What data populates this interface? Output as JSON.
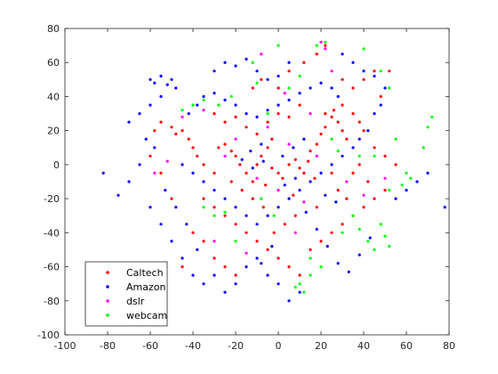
{
  "chart_data": {
    "type": "scatter",
    "title": "",
    "xlabel": "",
    "ylabel": "",
    "xlim": [
      -100,
      80
    ],
    "ylim": [
      -100,
      80
    ],
    "xticks": [
      -100,
      -80,
      -60,
      -40,
      -20,
      0,
      20,
      40,
      60,
      80
    ],
    "yticks": [
      -100,
      -80,
      -60,
      -40,
      -20,
      0,
      20,
      40,
      60,
      80
    ],
    "grid": false,
    "legend_position": "bottom-left",
    "series": [
      {
        "name": "Caltech",
        "color": "#ff0000",
        "points": [
          [
            -55,
            25
          ],
          [
            -50,
            22
          ],
          [
            -48,
            18
          ],
          [
            -45,
            20
          ],
          [
            -42,
            15
          ],
          [
            -40,
            10
          ],
          [
            -38,
            5
          ],
          [
            -35,
            0
          ],
          [
            -30,
            -5
          ],
          [
            -28,
            10
          ],
          [
            -25,
            12
          ],
          [
            -22,
            8
          ],
          [
            -20,
            5
          ],
          [
            -18,
            0
          ],
          [
            -15,
            -5
          ],
          [
            -12,
            -10
          ],
          [
            -10,
            0
          ],
          [
            -8,
            5
          ],
          [
            -5,
            10
          ],
          [
            -3,
            -2
          ],
          [
            0,
            -5
          ],
          [
            2,
            -8
          ],
          [
            5,
            0
          ],
          [
            8,
            3
          ],
          [
            10,
            -2
          ],
          [
            12,
            -5
          ],
          [
            15,
            8
          ],
          [
            18,
            12
          ],
          [
            20,
            18
          ],
          [
            22,
            22
          ],
          [
            25,
            28
          ],
          [
            28,
            25
          ],
          [
            30,
            20
          ],
          [
            32,
            15
          ],
          [
            35,
            30
          ],
          [
            38,
            25
          ],
          [
            40,
            20
          ],
          [
            22,
            30
          ],
          [
            26,
            32
          ],
          [
            30,
            35
          ],
          [
            -30,
            30
          ],
          [
            -28,
            35
          ],
          [
            -25,
            25
          ],
          [
            -20,
            28
          ],
          [
            -15,
            22
          ],
          [
            -10,
            18
          ],
          [
            -5,
            25
          ],
          [
            0,
            30
          ],
          [
            5,
            28
          ],
          [
            10,
            35
          ],
          [
            -35,
            -20
          ],
          [
            -30,
            -25
          ],
          [
            -25,
            -30
          ],
          [
            -20,
            -35
          ],
          [
            -15,
            -40
          ],
          [
            -10,
            -45
          ],
          [
            -5,
            -50
          ],
          [
            0,
            -55
          ],
          [
            5,
            -60
          ],
          [
            10,
            -65
          ],
          [
            15,
            -50
          ],
          [
            20,
            -45
          ],
          [
            25,
            -40
          ],
          [
            30,
            -35
          ],
          [
            35,
            -30
          ],
          [
            40,
            -25
          ],
          [
            45,
            -20
          ],
          [
            50,
            -15
          ],
          [
            -40,
            -40
          ],
          [
            -35,
            -45
          ],
          [
            -30,
            -55
          ],
          [
            -25,
            -60
          ],
          [
            -20,
            -65
          ],
          [
            45,
            10
          ],
          [
            50,
            5
          ],
          [
            55,
            0
          ],
          [
            48,
            40
          ],
          [
            52,
            55
          ],
          [
            45,
            55
          ],
          [
            40,
            50
          ],
          [
            -45,
            -60
          ],
          [
            -50,
            -20
          ],
          [
            -55,
            -5
          ],
          [
            -60,
            5
          ],
          [
            -58,
            20
          ],
          [
            -12,
            45
          ],
          [
            -8,
            50
          ],
          [
            0,
            45
          ],
          [
            5,
            55
          ],
          [
            12,
            60
          ],
          [
            18,
            65
          ],
          [
            22,
            70
          ],
          [
            30,
            50
          ],
          [
            35,
            45
          ],
          [
            28,
            -15
          ],
          [
            32,
            -20
          ],
          [
            18,
            -25
          ],
          [
            8,
            -30
          ],
          [
            3,
            -35
          ],
          [
            -2,
            -40
          ],
          [
            -7,
            -25
          ],
          [
            -12,
            -20
          ],
          [
            -17,
            -15
          ],
          [
            -22,
            -10
          ],
          [
            14,
            2
          ],
          [
            17,
            -8
          ],
          [
            -3,
            15
          ],
          [
            -6,
            -12
          ],
          [
            7,
            -18
          ],
          [
            25,
            -5
          ],
          [
            35,
            -5
          ],
          [
            38,
            0
          ],
          [
            42,
            -10
          ]
        ]
      },
      {
        "name": "Amazon",
        "color": "#0000ff",
        "points": [
          [
            -60,
            50
          ],
          [
            -58,
            48
          ],
          [
            -55,
            52
          ],
          [
            -52,
            47
          ],
          [
            -50,
            50
          ],
          [
            -48,
            45
          ],
          [
            -55,
            40
          ],
          [
            -60,
            35
          ],
          [
            -65,
            30
          ],
          [
            -70,
            25
          ],
          [
            -62,
            15
          ],
          [
            -58,
            10
          ],
          [
            -65,
            0
          ],
          [
            -70,
            -10
          ],
          [
            -75,
            -18
          ],
          [
            -82,
            -5
          ],
          [
            -60,
            -25
          ],
          [
            -55,
            -35
          ],
          [
            -50,
            -45
          ],
          [
            -45,
            -55
          ],
          [
            -40,
            -65
          ],
          [
            -35,
            -70
          ],
          [
            -30,
            -65
          ],
          [
            -25,
            -75
          ],
          [
            -20,
            -70
          ],
          [
            -15,
            -60
          ],
          [
            -10,
            -55
          ],
          [
            -5,
            -65
          ],
          [
            0,
            -70
          ],
          [
            5,
            -80
          ],
          [
            10,
            -75
          ],
          [
            -30,
            55
          ],
          [
            -25,
            60
          ],
          [
            -20,
            58
          ],
          [
            -15,
            62
          ],
          [
            -10,
            55
          ],
          [
            -5,
            50
          ],
          [
            0,
            52
          ],
          [
            5,
            60
          ],
          [
            30,
            65
          ],
          [
            35,
            60
          ],
          [
            40,
            55
          ],
          [
            45,
            52
          ],
          [
            50,
            45
          ],
          [
            48,
            35
          ],
          [
            45,
            30
          ],
          [
            42,
            20
          ],
          [
            38,
            15
          ],
          [
            35,
            10
          ],
          [
            30,
            5
          ],
          [
            25,
            0
          ],
          [
            20,
            -5
          ],
          [
            15,
            -10
          ],
          [
            10,
            -15
          ],
          [
            5,
            -20
          ],
          [
            0,
            -25
          ],
          [
            -5,
            -30
          ],
          [
            -10,
            -35
          ],
          [
            -15,
            -30
          ],
          [
            -20,
            -25
          ],
          [
            -25,
            -20
          ],
          [
            -30,
            -15
          ],
          [
            -35,
            -10
          ],
          [
            -40,
            -5
          ],
          [
            -45,
            0
          ],
          [
            -42,
            30
          ],
          [
            -38,
            35
          ],
          [
            -35,
            40
          ],
          [
            -30,
            42
          ],
          [
            -25,
            38
          ],
          [
            -20,
            35
          ],
          [
            -15,
            30
          ],
          [
            -10,
            28
          ],
          [
            -5,
            32
          ],
          [
            0,
            35
          ],
          [
            5,
            38
          ],
          [
            10,
            42
          ],
          [
            15,
            45
          ],
          [
            20,
            48
          ],
          [
            25,
            45
          ],
          [
            28,
            40
          ],
          [
            55,
            -20
          ],
          [
            60,
            -15
          ],
          [
            65,
            -10
          ],
          [
            78,
            -25
          ],
          [
            70,
            -5
          ],
          [
            2,
            5
          ],
          [
            7,
            10
          ],
          [
            12,
            15
          ],
          [
            -7,
            2
          ],
          [
            -12,
            -2
          ],
          [
            -17,
            3
          ],
          [
            3,
            -12
          ],
          [
            8,
            -8
          ],
          [
            13,
            -28
          ],
          [
            18,
            -38
          ],
          [
            23,
            -48
          ],
          [
            28,
            -58
          ],
          [
            33,
            -63
          ],
          [
            38,
            -53
          ],
          [
            43,
            -43
          ],
          [
            -3,
            -48
          ],
          [
            -8,
            -58
          ],
          [
            -38,
            -50
          ],
          [
            -43,
            -35
          ],
          [
            -48,
            -25
          ],
          [
            -53,
            -15
          ],
          [
            -8,
            12
          ],
          [
            -13,
            8
          ],
          [
            22,
            -18
          ],
          [
            27,
            -22
          ]
        ]
      },
      {
        "name": "dslr",
        "color": "#ff00ff",
        "points": [
          [
            -58,
            -5
          ],
          [
            -52,
            2
          ],
          [
            -45,
            28
          ],
          [
            -35,
            32
          ],
          [
            -20,
            15
          ],
          [
            -10,
            -8
          ],
          [
            -5,
            22
          ],
          [
            0,
            -15
          ],
          [
            5,
            12
          ],
          [
            12,
            -22
          ],
          [
            18,
            5
          ],
          [
            20,
            72
          ],
          [
            22,
            68
          ],
          [
            -8,
            65
          ],
          [
            32,
            -10
          ],
          [
            40,
            -18
          ],
          [
            50,
            -8
          ],
          [
            -30,
            -45
          ],
          [
            -15,
            -52
          ],
          [
            8,
            -40
          ],
          [
            15,
            30
          ],
          [
            25,
            55
          ],
          [
            -25,
            5
          ],
          [
            3,
            42
          ]
        ]
      },
      {
        "name": "webcam",
        "color": "#00ff00",
        "points": [
          [
            -28,
            35
          ],
          [
            -22,
            40
          ],
          [
            -35,
            38
          ],
          [
            -40,
            35
          ],
          [
            -45,
            32
          ],
          [
            22,
            72
          ],
          [
            18,
            70
          ],
          [
            40,
            68
          ],
          [
            52,
            45
          ],
          [
            60,
            -5
          ],
          [
            62,
            -8
          ],
          [
            58,
            -12
          ],
          [
            52,
            -15
          ],
          [
            68,
            10
          ],
          [
            70,
            22
          ],
          [
            72,
            28
          ],
          [
            48,
            -35
          ],
          [
            50,
            -42
          ],
          [
            52,
            -48
          ],
          [
            45,
            -50
          ],
          [
            42,
            -45
          ],
          [
            10,
            -70
          ],
          [
            12,
            -75
          ],
          [
            8,
            -72
          ],
          [
            15,
            -65
          ],
          [
            35,
            -30
          ],
          [
            38,
            -38
          ],
          [
            30,
            -40
          ],
          [
            -5,
            30
          ],
          [
            5,
            45
          ],
          [
            10,
            52
          ],
          [
            -12,
            60
          ],
          [
            -10,
            48
          ],
          [
            0,
            70
          ],
          [
            25,
            15
          ],
          [
            28,
            8
          ],
          [
            15,
            -55
          ],
          [
            20,
            -60
          ],
          [
            -8,
            -20
          ],
          [
            -2,
            -30
          ],
          [
            -35,
            -25
          ],
          [
            -30,
            -30
          ],
          [
            -25,
            -28
          ],
          [
            -20,
            -45
          ],
          [
            38,
            5
          ],
          [
            45,
            5
          ],
          [
            55,
            15
          ],
          [
            48,
            55
          ]
        ]
      }
    ]
  }
}
